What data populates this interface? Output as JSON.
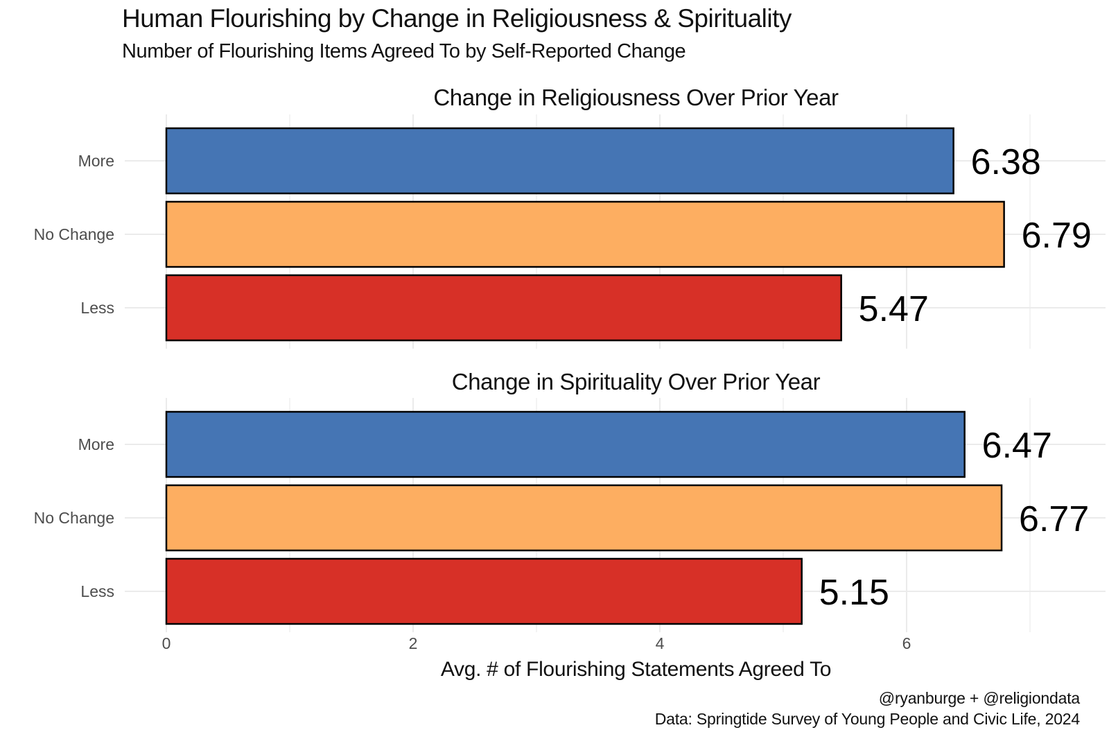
{
  "chart_data": {
    "type": "bar",
    "orientation": "horizontal",
    "title": "Human Flourishing by Change in Religiousness & Spirituality",
    "subtitle": "Number of Flourishing Items Agreed To by Self-Reported Change",
    "xlabel": "Avg. # of Flourishing Statements Agreed To",
    "ylabel": "",
    "xlim": [
      0,
      7.5
    ],
    "x_ticks": [
      0,
      2,
      4,
      6
    ],
    "grid": true,
    "categories": [
      "More",
      "No Change",
      "Less"
    ],
    "colors": {
      "More": "#4575b4",
      "No Change": "#fdae61",
      "Less": "#d73027"
    },
    "panels": [
      {
        "title": "Change in Religiousness Over Prior Year",
        "values": [
          6.38,
          6.79,
          5.47
        ],
        "labels": [
          "6.38",
          "6.79",
          "5.47"
        ]
      },
      {
        "title": "Change in Spirituality Over Prior Year",
        "values": [
          6.47,
          6.77,
          5.15
        ],
        "labels": [
          "6.47",
          "6.77",
          "5.15"
        ]
      }
    ]
  },
  "caption": {
    "line1": "@ryanburge + @religiondata",
    "line2": "Data: Springtide Survey of Young People and Civic Life, 2024"
  }
}
